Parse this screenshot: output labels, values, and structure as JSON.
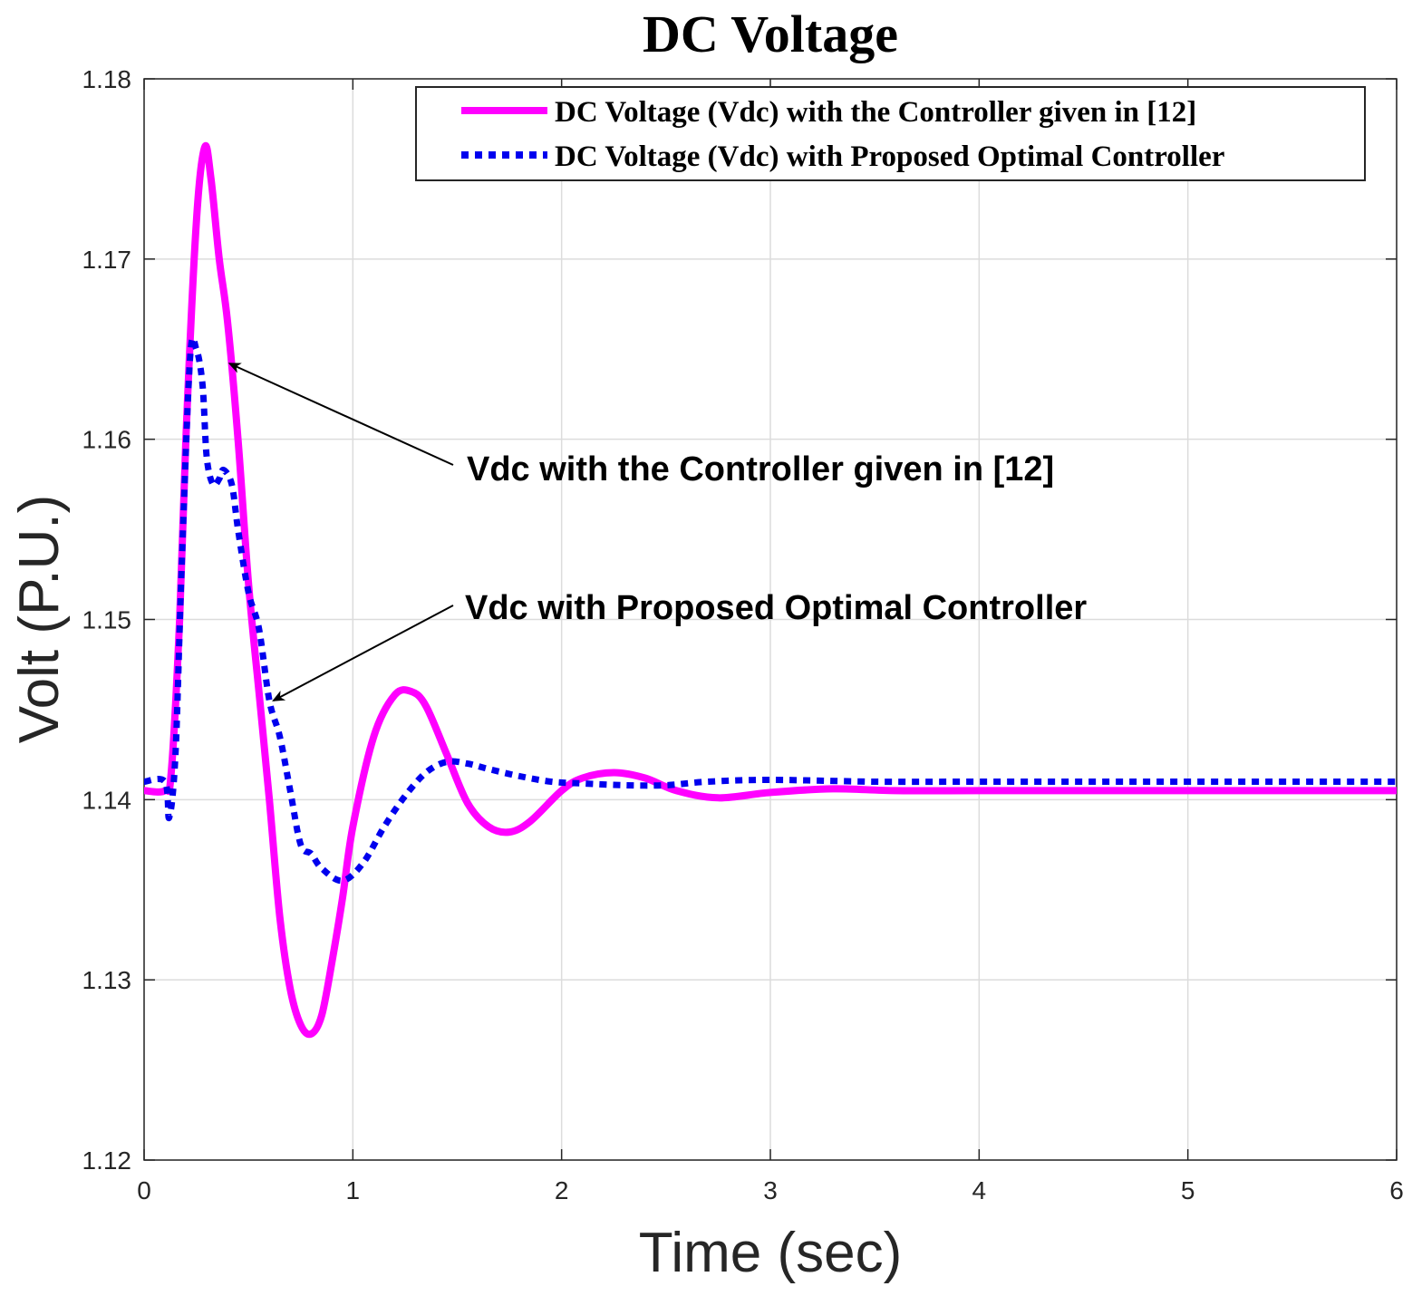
{
  "chart_data": {
    "type": "line",
    "title": "DC Voltage",
    "xlabel": "Time (sec)",
    "ylabel": "Volt (P.U.)",
    "xlim": [
      0,
      6
    ],
    "ylim": [
      1.12,
      1.18
    ],
    "xticks": [
      0,
      1,
      2,
      3,
      4,
      5,
      6
    ],
    "xtick_labels": [
      "0",
      "1",
      "2",
      "3",
      "4",
      "5",
      "6"
    ],
    "yticks": [
      1.12,
      1.13,
      1.14,
      1.15,
      1.16,
      1.17,
      1.18
    ],
    "ytick_labels": [
      "1.12",
      "1.13",
      "1.14",
      "1.15",
      "1.16",
      "1.17",
      "1.18"
    ],
    "grid": true,
    "legend_position": "top-right",
    "colors": {
      "series_1": "#ff00ff",
      "series_2": "#0000ee",
      "arrow": "#000000"
    },
    "series": [
      {
        "name": "DC Voltage (Vdc) with the Controller given in [12]",
        "style": "solid",
        "x": [
          0,
          0.1,
          0.13,
          0.17,
          0.2,
          0.25,
          0.29,
          0.32,
          0.36,
          0.4,
          0.45,
          0.5,
          0.55,
          0.6,
          0.65,
          0.7,
          0.75,
          0.8,
          0.85,
          0.9,
          0.95,
          1.0,
          1.1,
          1.2,
          1.28,
          1.35,
          1.45,
          1.55,
          1.65,
          1.75,
          1.85,
          2.0,
          2.1,
          2.25,
          2.4,
          2.55,
          2.75,
          3.0,
          3.3,
          3.6,
          4.0,
          4.5,
          5.0,
          5.5,
          6.0
        ],
        "y": [
          1.1405,
          1.1405,
          1.1415,
          1.15,
          1.16,
          1.172,
          1.1762,
          1.1745,
          1.17,
          1.1665,
          1.16,
          1.152,
          1.146,
          1.14,
          1.1335,
          1.1295,
          1.1275,
          1.127,
          1.128,
          1.131,
          1.1345,
          1.1385,
          1.1435,
          1.1458,
          1.146,
          1.1452,
          1.1425,
          1.1398,
          1.1385,
          1.1382,
          1.1388,
          1.1405,
          1.1412,
          1.1415,
          1.1412,
          1.1405,
          1.1401,
          1.1404,
          1.1406,
          1.1405,
          1.1405,
          1.1405,
          1.1405,
          1.1405,
          1.1405
        ]
      },
      {
        "name": "DC Voltage (Vdc) with Proposed Optimal Controller",
        "style": "dotted",
        "x": [
          0,
          0.1,
          0.12,
          0.15,
          0.18,
          0.22,
          0.25,
          0.28,
          0.3,
          0.33,
          0.36,
          0.38,
          0.42,
          0.45,
          0.5,
          0.55,
          0.6,
          0.65,
          0.7,
          0.75,
          0.8,
          0.85,
          0.95,
          1.05,
          1.15,
          1.25,
          1.35,
          1.45,
          1.55,
          1.65,
          1.8,
          1.95,
          2.1,
          2.3,
          2.5,
          2.7,
          3.0,
          3.5,
          4.0,
          4.5,
          5.0,
          5.5,
          6.0
        ],
        "y": [
          1.141,
          1.141,
          1.139,
          1.1425,
          1.153,
          1.1645,
          1.165,
          1.163,
          1.159,
          1.1575,
          1.1578,
          1.1583,
          1.1575,
          1.155,
          1.1515,
          1.1495,
          1.1455,
          1.1435,
          1.1405,
          1.1375,
          1.137,
          1.1362,
          1.1355,
          1.1365,
          1.1385,
          1.1402,
          1.1415,
          1.1421,
          1.142,
          1.1417,
          1.1413,
          1.141,
          1.1409,
          1.1408,
          1.1408,
          1.141,
          1.1411,
          1.141,
          1.141,
          1.141,
          1.141,
          1.141,
          1.141
        ]
      }
    ],
    "legend": [
      "DC Voltage (Vdc) with the Controller given in [12]",
      "DC Voltage (Vdc) with Proposed Optimal Controller"
    ],
    "annotations": [
      {
        "text": "Vdc with the Controller given in [12]",
        "target": [
          0.41,
          1.1642
        ],
        "series": 0
      },
      {
        "text": "Vdc with Proposed Optimal Controller",
        "target": [
          0.62,
          1.1455
        ],
        "series": 1
      }
    ]
  }
}
